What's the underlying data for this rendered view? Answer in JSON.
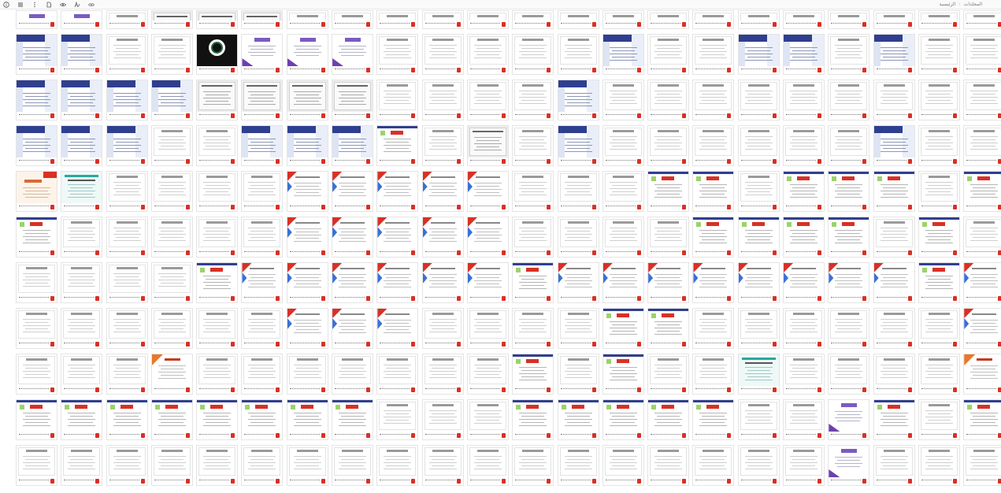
{
  "toolbar": {
    "icons": [
      "info-icon",
      "menu-icon",
      "more-icon",
      "file-icon",
      "eye-icon",
      "lettering-icon",
      "link-icon"
    ]
  },
  "breadcrumb": {
    "items": [
      "الرئيسية",
      "المجلدات"
    ]
  },
  "colors": {
    "navy": "#2f3f8f",
    "blue": "#3a6fd8",
    "orange": "#e8782a",
    "red": "#d93025",
    "green": "#1f6b3a",
    "teal": "#2aa7a0",
    "gray": "#cfcfcf",
    "purple": "#6d3fb0"
  },
  "grid": {
    "columns": 22,
    "rows": [
      "ppwgggwwwwwwwwwwwwwwww",
      "nnwbcpppwwwwwnwwnnwnww",
      "nnnnggggwwwwnwwwwwwwww",
      "nnnwwnnnmwgwnwwwwwwnww",
      "ktwwwwrrrrrwwwmmwmmmwm",
      "mwwwwwrrrrrwwwwmmmmwmw",
      "wwwwmrrrrrrmrrrrrrrrmr",
      "wwwwwwrrrwwwwmmwwwwwwr",
      "wwwowwwwwwwmwmwwtwwwwo",
      "mmmmmmmmwwwmmmmmwwpmwm",
      "wwwwwwwwwwwwwwwwwwpwww"
    ]
  }
}
